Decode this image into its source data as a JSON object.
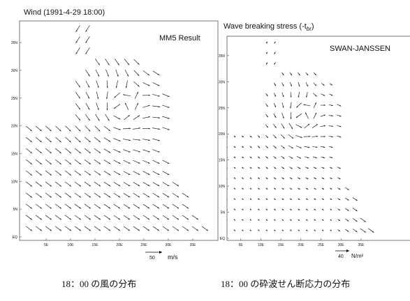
{
  "panels": [
    {
      "title": "Wind (1991-4-29 18:00)",
      "label": "MM5 Result",
      "yticks": [
        "EQ",
        "5N",
        "10N",
        "15N",
        "20N",
        "25N",
        "30N",
        "35N"
      ],
      "xticks": [
        "5E",
        "10E",
        "15E",
        "20E",
        "25E",
        "30E",
        "35E"
      ],
      "scale": "50",
      "unit": "m/s",
      "caption": "18：00 の風の分布"
    },
    {
      "title": {
        "main": "Wave breaking stress (-t",
        "sub": "br",
        "end": ")"
      },
      "label": "SWAN-JANSSEN",
      "yticks": [
        "EQ",
        "5N",
        "10N",
        "15N",
        "20N",
        "25N",
        "30N",
        "35N"
      ],
      "xticks": [
        "5E",
        "10E",
        "15E",
        "20E",
        "25E",
        "30E",
        "35E"
      ],
      "scale": "40",
      "unit": "N/m²",
      "caption": "18：00 の砕波せん断応力の分布"
    }
  ]
}
